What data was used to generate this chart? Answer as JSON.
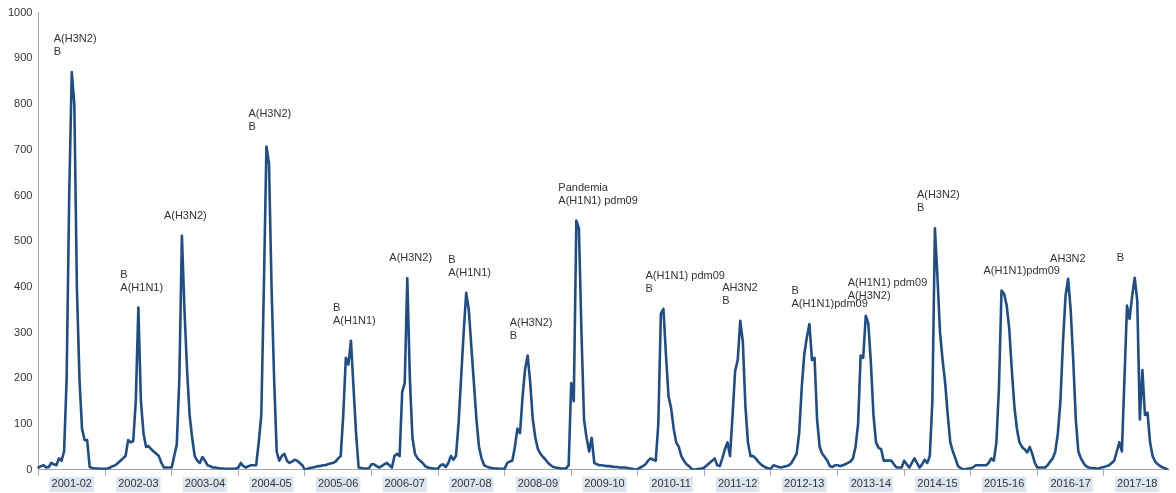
{
  "chart_data": {
    "type": "line",
    "color": "#1f4e86",
    "marker": "none",
    "line_style": "solid",
    "grid": false,
    "legend": false,
    "categories": [
      null,
      null,
      null,
      null,
      null,
      null,
      null,
      null,
      null,
      null,
      null,
      null,
      null,
      "2001-02",
      null,
      null,
      null,
      null,
      null,
      null,
      null,
      null,
      null,
      null,
      null,
      null,
      null,
      null,
      null,
      null,
      null,
      null,
      null,
      null,
      null,
      null,
      null,
      null,
      null,
      "2002-03",
      null,
      null,
      null,
      null,
      null,
      null,
      null,
      null,
      null,
      null,
      null,
      null,
      null,
      null,
      null,
      null,
      null,
      null,
      null,
      null,
      null,
      null,
      null,
      null,
      null,
      "2003-04",
      null,
      null,
      null,
      null,
      null,
      null,
      null,
      null,
      null,
      null,
      null,
      null,
      null,
      null,
      null,
      null,
      null,
      null,
      null,
      null,
      null,
      null,
      null,
      null,
      null,
      "2004-05",
      null,
      null,
      null,
      null,
      null,
      null,
      null,
      null,
      null,
      null,
      null,
      null,
      null,
      null,
      null,
      null,
      null,
      null,
      null,
      null,
      null,
      null,
      null,
      null,
      null,
      "2005-06",
      null,
      null,
      null,
      null,
      null,
      null,
      null,
      null,
      null,
      null,
      null,
      null,
      null,
      null,
      null,
      null,
      null,
      null,
      null,
      null,
      null,
      null,
      null,
      null,
      null,
      "2006-07",
      null,
      null,
      null,
      null,
      null,
      null,
      null,
      null,
      null,
      null,
      null,
      null,
      null,
      null,
      null,
      null,
      null,
      null,
      null,
      null,
      null,
      null,
      null,
      null,
      null,
      "2007-08",
      null,
      null,
      null,
      null,
      null,
      null,
      null,
      null,
      null,
      null,
      null,
      null,
      null,
      null,
      null,
      null,
      null,
      null,
      null,
      null,
      null,
      null,
      null,
      null,
      null,
      "2008-09",
      null,
      null,
      null,
      null,
      null,
      null,
      null,
      null,
      null,
      null,
      null,
      null,
      null,
      null,
      null,
      null,
      null,
      null,
      null,
      null,
      null,
      null,
      null,
      null,
      null,
      "2009-10",
      null,
      null,
      null,
      null,
      null,
      null,
      null,
      null,
      null,
      null,
      null,
      null,
      null,
      null,
      null,
      null,
      null,
      null,
      null,
      null,
      null,
      null,
      null,
      null,
      null,
      "2010-11",
      null,
      null,
      null,
      null,
      null,
      null,
      null,
      null,
      null,
      null,
      null,
      null,
      null,
      null,
      null,
      null,
      null,
      null,
      null,
      null,
      null,
      null,
      null,
      null,
      null,
      "2011-12",
      null,
      null,
      null,
      null,
      null,
      null,
      null,
      null,
      null,
      null,
      null,
      null,
      null,
      null,
      null,
      null,
      null,
      null,
      null,
      null,
      null,
      null,
      null,
      null,
      null,
      "2012-13",
      null,
      null,
      null,
      null,
      null,
      null,
      null,
      null,
      null,
      null,
      null,
      null,
      null,
      null,
      null,
      null,
      null,
      null,
      null,
      null,
      null,
      null,
      null,
      null,
      null,
      "2013-14",
      null,
      null,
      null,
      null,
      null,
      null,
      null,
      null,
      null,
      null,
      null,
      null,
      null,
      null,
      null,
      null,
      null,
      null,
      null,
      null,
      null,
      null,
      null,
      null,
      null,
      "2014-15",
      null,
      null,
      null,
      null,
      null,
      null,
      null,
      null,
      null,
      null,
      null,
      null,
      null,
      null,
      null,
      null,
      null,
      null,
      null,
      null,
      null,
      null,
      null,
      null,
      null,
      "2015-16",
      null,
      null,
      null,
      null,
      null,
      null,
      null,
      null,
      null,
      null,
      null,
      null,
      null,
      null,
      null,
      null,
      null,
      null,
      null,
      null,
      null,
      null,
      null,
      null,
      null,
      "2016-17",
      null,
      null,
      null,
      null,
      null,
      null,
      null,
      null,
      null,
      null,
      null,
      null,
      null,
      null,
      null,
      null,
      null,
      null,
      null,
      null,
      null,
      null,
      null,
      null,
      null,
      "2017-18",
      null,
      null,
      null,
      null,
      null,
      null,
      null,
      null,
      null,
      null,
      null,
      null
    ],
    "values": [
      5,
      8,
      10,
      5,
      6,
      15,
      12,
      10,
      25,
      20,
      40,
      200,
      600,
      870,
      800,
      400,
      200,
      90,
      65,
      65,
      6,
      4,
      3,
      3,
      2,
      2,
      2,
      3,
      5,
      8,
      10,
      15,
      20,
      25,
      30,
      65,
      60,
      63,
      150,
      355,
      150,
      80,
      50,
      52,
      45,
      40,
      35,
      30,
      15,
      5,
      5,
      5,
      5,
      30,
      55,
      200,
      512,
      350,
      220,
      120,
      70,
      30,
      20,
      15,
      28,
      20,
      10,
      8,
      5,
      5,
      4,
      3,
      3,
      2,
      2,
      2,
      2,
      2,
      5,
      15,
      8,
      5,
      8,
      10,
      10,
      10,
      60,
      120,
      400,
      707,
      670,
      400,
      200,
      40,
      20,
      30,
      35,
      20,
      15,
      18,
      22,
      20,
      15,
      10,
      0,
      2,
      4,
      5,
      6,
      8,
      8,
      10,
      10,
      12,
      14,
      15,
      18,
      25,
      30,
      120,
      245,
      230,
      282,
      180,
      80,
      5,
      4,
      3,
      3,
      3,
      12,
      12,
      8,
      5,
      8,
      12,
      15,
      10,
      5,
      30,
      35,
      30,
      170,
      190,
      419,
      200,
      70,
      35,
      25,
      20,
      15,
      8,
      5,
      4,
      3,
      2,
      3,
      10,
      12,
      6,
      15,
      30,
      22,
      30,
      100,
      200,
      300,
      387,
      350,
      270,
      190,
      110,
      50,
      25,
      10,
      7,
      5,
      4,
      3,
      3,
      2,
      2,
      2,
      15,
      18,
      20,
      50,
      90,
      80,
      160,
      220,
      250,
      190,
      110,
      70,
      45,
      35,
      28,
      22,
      15,
      10,
      6,
      5,
      4,
      3,
      3,
      3,
      10,
      190,
      150,
      545,
      528,
      300,
      110,
      70,
      40,
      70,
      15,
      12,
      10,
      10,
      9,
      8,
      8,
      7,
      6,
      6,
      5,
      5,
      5,
      4,
      3,
      2,
      0,
      2,
      5,
      8,
      12,
      20,
      25,
      22,
      20,
      100,
      341,
      352,
      250,
      160,
      135,
      90,
      60,
      50,
      30,
      20,
      12,
      8,
      2,
      0,
      1,
      2,
      3,
      5,
      10,
      15,
      20,
      25,
      10,
      8,
      25,
      45,
      60,
      30,
      120,
      216,
      240,
      326,
      280,
      140,
      60,
      30,
      30,
      25,
      18,
      12,
      8,
      5,
      3,
      3,
      10,
      8,
      6,
      5,
      7,
      8,
      10,
      15,
      25,
      35,
      80,
      180,
      253,
      290,
      319,
      240,
      245,
      110,
      50,
      35,
      28,
      20,
      8,
      6,
      10,
      10,
      8,
      10,
      12,
      15,
      18,
      25,
      50,
      100,
      250,
      245,
      337,
      320,
      234,
      120,
      60,
      48,
      45,
      20,
      20,
      20,
      20,
      12,
      5,
      5,
      5,
      20,
      12,
      5,
      15,
      25,
      15,
      5,
      12,
      22,
      15,
      30,
      150,
      528,
      420,
      300,
      240,
      190,
      120,
      60,
      40,
      25,
      8,
      4,
      1,
      1,
      3,
      3,
      6,
      10,
      10,
      10,
      10,
      10,
      15,
      25,
      20,
      60,
      180,
      392,
      385,
      360,
      310,
      220,
      140,
      90,
      60,
      50,
      45,
      38,
      50,
      35,
      15,
      5,
      5,
      5,
      5,
      10,
      18,
      25,
      40,
      80,
      150,
      280,
      380,
      418,
      350,
      240,
      110,
      40,
      25,
      15,
      8,
      5,
      4,
      4,
      3,
      3,
      5,
      6,
      8,
      10,
      15,
      20,
      40,
      60,
      40,
      200,
      359,
      330,
      380,
      420,
      370,
      110,
      218,
      120,
      125,
      60,
      30,
      18,
      12,
      8,
      5,
      3,
      0
    ],
    "ylim": [
      0,
      1000
    ],
    "yticks": [
      0,
      100,
      200,
      300,
      400,
      500,
      600,
      700,
      800,
      900,
      1000
    ],
    "annotations": [
      "A(H3N2)\nB",
      "B\nA(H1N1)",
      "A(H3N2)",
      "A(H3N2)\nB",
      "B\nA(H1N1)",
      "A(H3N2)",
      "B\nA(H1N1)",
      "A(H3N2)\nB",
      "Pandemia\nA(H1N1) pdm09",
      "A(H1N1) pdm09\nB",
      "AH3N2\nB",
      "B\nA(H1N1)pdm09",
      "A(H1N1) pdm09\nA(H3N2)",
      "A(H3N2)\nB",
      "A(H1N1)pdm09",
      "AH3N2",
      "B"
    ]
  }
}
